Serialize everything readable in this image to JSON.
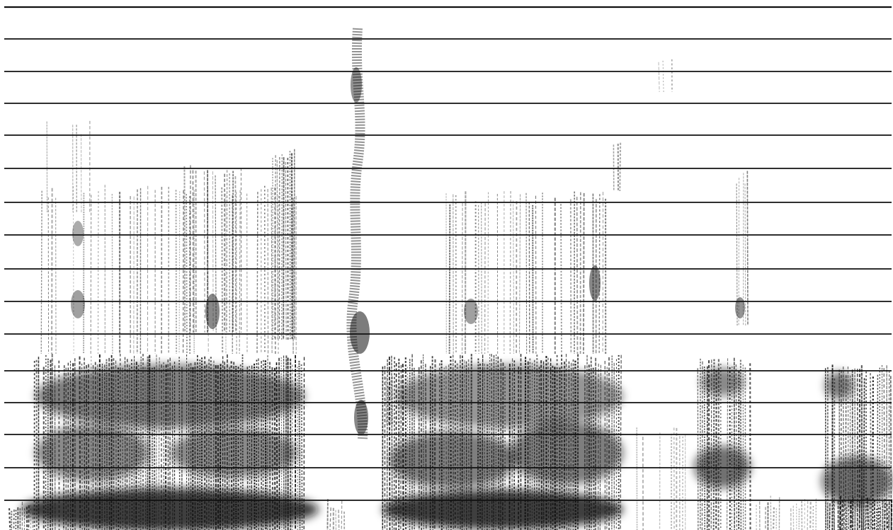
{
  "image": {
    "kind": "spectrogram",
    "background": "#ffffff",
    "ink": "#111111",
    "horizontal_rule_count": 16
  }
}
